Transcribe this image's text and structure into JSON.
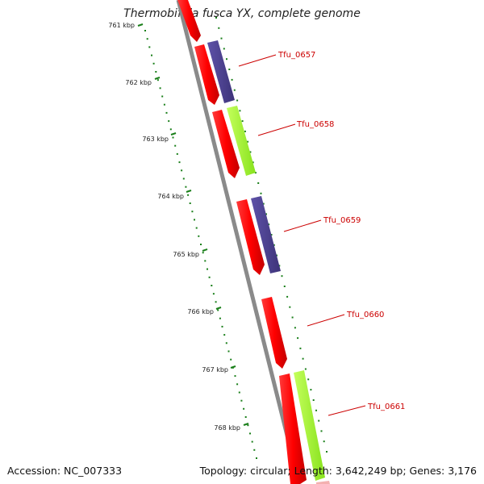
{
  "title": "Thermobifida fusca YX, complete genome",
  "footer": {
    "accession": "Accession: NC_007333",
    "topology": "Topology: circular; Length: 3,642,249 bp; Genes: 3,176"
  },
  "colors": {
    "backbone": "#8a8a8a",
    "tick": "#1a7f1a",
    "gene": "#ff0000",
    "gene_dark": "#b00000",
    "feature_purple": "#4b3f8f",
    "feature_green": "#a6ff2e",
    "label": "#cc0000"
  },
  "scale_labels": [
    "761 kbp",
    "762 kbp",
    "763 kbp",
    "764 kbp",
    "765 kbp",
    "766 kbp",
    "767 kbp",
    "768 kbp"
  ],
  "genes": [
    {
      "label": "Tfu_0657"
    },
    {
      "label": "Tfu_0658"
    },
    {
      "label": "Tfu_0659"
    },
    {
      "label": "Tfu_0660"
    },
    {
      "label": "Tfu_0661"
    }
  ]
}
